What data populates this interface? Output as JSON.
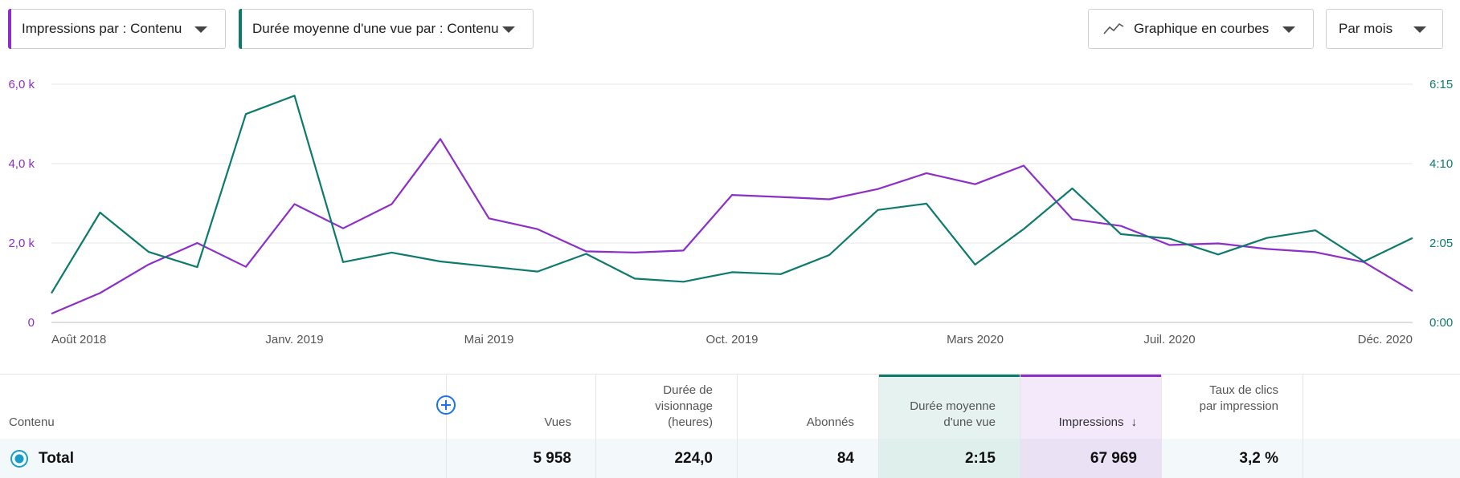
{
  "toolbar": {
    "metric1_label": "Impressions par : Contenu",
    "metric2_label": "Durée moyenne d'une vue par : Contenu",
    "chart_type_label": "Graphique en courbes",
    "period_label": "Par mois"
  },
  "colors": {
    "impressions": "#8c2ec8",
    "duration": "#0d7a6c",
    "grid": "#e4e4e4",
    "add_icon": "#1a73e8"
  },
  "chart_data": {
    "type": "line",
    "x": [
      "Août 2018",
      "Sept. 2018",
      "Oct. 2018",
      "Nov. 2018",
      "Déc. 2018",
      "Janv. 2019",
      "Févr. 2019",
      "Mars 2019",
      "Avr. 2019",
      "Mai 2019",
      "Juin 2019",
      "Juil. 2019",
      "Août 2019",
      "Sept. 2019",
      "Oct. 2019",
      "Nov. 2019",
      "Déc. 2019",
      "Janv. 2020",
      "Févr. 2020",
      "Mars 2020",
      "Avr. 2020",
      "Mai 2020",
      "Juin 2020",
      "Juil. 2020",
      "Août 2020",
      "Sept. 2020",
      "Oct. 2020",
      "Nov. 2020",
      "Déc. 2020"
    ],
    "x_tick_labels": [
      "Août 2018",
      "Janv. 2019",
      "Mai 2019",
      "Oct. 2019",
      "Mars 2020",
      "Juil. 2020",
      "Déc. 2020"
    ],
    "x_tick_indices": [
      0,
      5,
      9,
      14,
      19,
      23,
      28
    ],
    "y_left_ticks": [
      "0",
      "2,0 k",
      "4,0 k",
      "6,0 k"
    ],
    "y_left_range": [
      0,
      6000
    ],
    "y_right_ticks": [
      "0:00",
      "2:05",
      "4:10",
      "6:15"
    ],
    "y_right_range_seconds": [
      0,
      375
    ],
    "grid": true,
    "series": [
      {
        "name": "Impressions",
        "axis": "left",
        "values": [
          220,
          740,
          1460,
          2000,
          1400,
          2980,
          2370,
          2980,
          4620,
          2620,
          2350,
          1790,
          1760,
          1810,
          3210,
          3160,
          3100,
          3360,
          3760,
          3480,
          3950,
          2600,
          2430,
          1950,
          1990,
          1850,
          1770,
          1520,
          790
        ]
      },
      {
        "name": "Durée moyenne d'une vue",
        "axis": "right",
        "unit": "seconds",
        "values": [
          46,
          173,
          111,
          87,
          328,
          357,
          95,
          110,
          96,
          88,
          80,
          108,
          69,
          64,
          79,
          76,
          106,
          177,
          187,
          91,
          147,
          211,
          139,
          132,
          107,
          133,
          145,
          96,
          133
        ]
      }
    ]
  },
  "table": {
    "content_header": "Contenu",
    "columns": [
      {
        "header": "Vues",
        "total": "5 958"
      },
      {
        "header": "Durée de visionnage (heures)",
        "total": "224,0"
      },
      {
        "header": "Abonnés",
        "total": "84"
      },
      {
        "header": "Durée moyenne d'une vue",
        "total": "2:15"
      },
      {
        "header": "Impressions",
        "total": "67 969",
        "sort": "↓"
      },
      {
        "header": "Taux de clics par impression",
        "total": "3,2 %"
      }
    ],
    "total_label": "Total"
  }
}
